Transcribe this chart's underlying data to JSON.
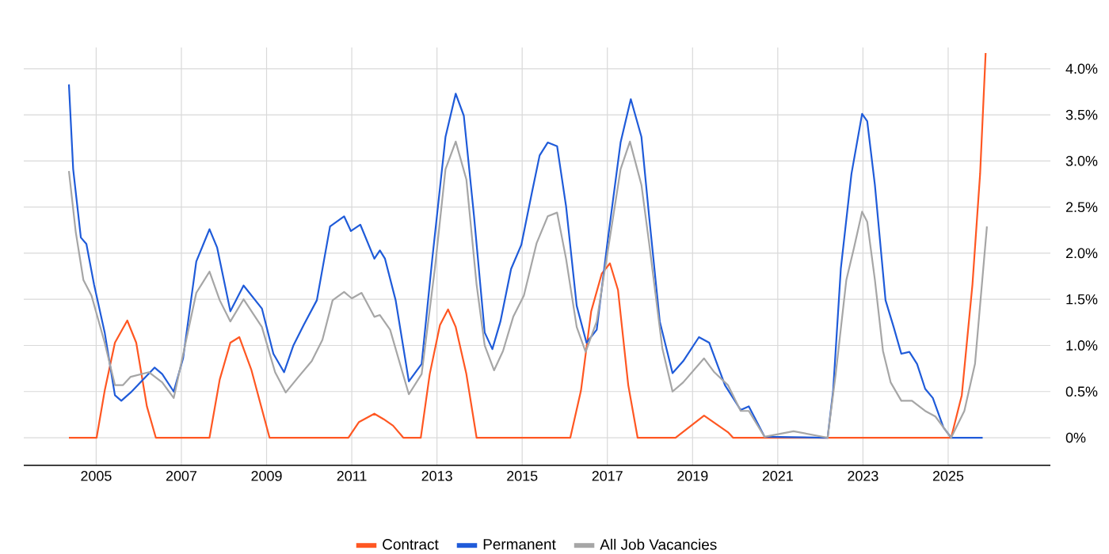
{
  "chart_data": {
    "type": "line",
    "xlim": [
      2003.3,
      2027.4
    ],
    "xticks": [
      2005,
      2007,
      2009,
      2011,
      2013,
      2015,
      2017,
      2019,
      2021,
      2023,
      2025
    ],
    "ylim": [
      -0.3,
      4.23
    ],
    "yticks": [
      {
        "value": 0,
        "label": "0%"
      },
      {
        "value": 0.5,
        "label": "0.5%"
      },
      {
        "value": 1,
        "label": "1.0%"
      },
      {
        "value": 1.5,
        "label": "1.5%"
      },
      {
        "value": 2,
        "label": "2.0%"
      },
      {
        "value": 2.5,
        "label": "2.5%"
      },
      {
        "value": 3,
        "label": "3.0%"
      },
      {
        "value": 3.5,
        "label": "3.5%"
      },
      {
        "value": 4,
        "label": "4.0%"
      }
    ],
    "grid": true,
    "legend": "bottom",
    "marker": "none",
    "line_style": "solid",
    "series": [
      {
        "name": "Contract",
        "color": "#ff5722",
        "x": [
          2004.36,
          2005.01,
          2005.2,
          2005.44,
          2005.73,
          2005.94,
          2006.19,
          2006.4,
          2007.66,
          2007.9,
          2008.15,
          2008.36,
          2008.64,
          2009.07,
          2010.92,
          2011.17,
          2011.53,
          2011.75,
          2011.97,
          2012.21,
          2012.62,
          2012.83,
          2013.07,
          2013.26,
          2013.44,
          2013.69,
          2013.93,
          2016.13,
          2016.38,
          2016.62,
          2016.87,
          2017.06,
          2017.25,
          2017.49,
          2017.71,
          2018.6,
          2019.27,
          2019.83,
          2019.95,
          2025.07,
          2025.32,
          2025.57,
          2025.75,
          2025.88
        ],
        "values": [
          0,
          0,
          0.51,
          1.03,
          1.27,
          1.03,
          0.34,
          0,
          0,
          0.63,
          1.03,
          1.09,
          0.74,
          0,
          0,
          0.17,
          0.26,
          0.2,
          0.13,
          0,
          0,
          0.69,
          1.22,
          1.39,
          1.2,
          0.69,
          0,
          0,
          0.51,
          1.37,
          1.78,
          1.89,
          1.6,
          0.57,
          0,
          0,
          0.24,
          0.06,
          0,
          0,
          0.46,
          1.66,
          2.86,
          4.17
        ]
      },
      {
        "name": "Permanent",
        "color": "#1f5bd9",
        "x": [
          2004.36,
          2004.46,
          2004.64,
          2004.77,
          2004.95,
          2005.2,
          2005.44,
          2005.59,
          2005.81,
          2006.37,
          2006.55,
          2006.82,
          2007.04,
          2007.35,
          2007.66,
          2007.84,
          2008.15,
          2008.46,
          2008.89,
          2009.16,
          2009.41,
          2009.63,
          2009.88,
          2010.18,
          2010.49,
          2010.82,
          2010.98,
          2011.2,
          2011.53,
          2011.66,
          2011.78,
          2012.03,
          2012.34,
          2012.64,
          2012.89,
          2013.2,
          2013.44,
          2013.63,
          2013.87,
          2014.12,
          2014.3,
          2014.49,
          2014.74,
          2014.98,
          2015.23,
          2015.41,
          2015.6,
          2015.82,
          2016.03,
          2016.28,
          2016.51,
          2016.75,
          2017.0,
          2017.31,
          2017.55,
          2017.8,
          2017.98,
          2018.23,
          2018.53,
          2018.78,
          2019.15,
          2019.39,
          2019.76,
          2020.13,
          2020.32,
          2020.69,
          2021.37,
          2022.17,
          2022.3,
          2022.48,
          2022.73,
          2022.98,
          2023.1,
          2023.28,
          2023.53,
          2023.72,
          2023.9,
          2024.09,
          2024.27,
          2024.46,
          2024.64,
          2024.89,
          2025.07,
          2025.81
        ],
        "values": [
          3.83,
          2.91,
          2.17,
          2.1,
          1.66,
          1.14,
          0.46,
          0.4,
          0.49,
          0.76,
          0.69,
          0.5,
          0.86,
          1.91,
          2.26,
          2.06,
          1.37,
          1.65,
          1.4,
          0.91,
          0.71,
          1.0,
          1.23,
          1.49,
          2.29,
          2.4,
          2.24,
          2.31,
          1.94,
          2.03,
          1.94,
          1.49,
          0.61,
          0.8,
          1.94,
          3.26,
          3.73,
          3.49,
          2.4,
          1.14,
          0.96,
          1.26,
          1.83,
          2.09,
          2.66,
          3.06,
          3.2,
          3.16,
          2.51,
          1.43,
          1.03,
          1.17,
          2.11,
          3.2,
          3.67,
          3.26,
          2.4,
          1.26,
          0.7,
          0.83,
          1.09,
          1.03,
          0.57,
          0.3,
          0.34,
          0.01,
          null,
          0,
          0.51,
          1.83,
          2.86,
          3.51,
          3.43,
          2.74,
          1.49,
          1.2,
          0.91,
          0.93,
          0.8,
          0.53,
          0.43,
          0.11,
          0,
          0
        ]
      },
      {
        "name": "All Job Vacancies",
        "color": "#a6a6a6",
        "x": [
          2004.36,
          2004.52,
          2004.7,
          2004.89,
          2005.2,
          2005.44,
          2005.63,
          2005.81,
          2006.24,
          2006.55,
          2006.82,
          2007.1,
          2007.35,
          2007.66,
          2007.9,
          2008.15,
          2008.46,
          2008.89,
          2009.2,
          2009.45,
          2009.75,
          2010.06,
          2010.31,
          2010.55,
          2010.82,
          2011.0,
          2011.23,
          2011.53,
          2011.66,
          2011.9,
          2012.34,
          2012.64,
          2012.95,
          2013.2,
          2013.44,
          2013.69,
          2013.93,
          2014.12,
          2014.34,
          2014.55,
          2014.79,
          2015.04,
          2015.34,
          2015.6,
          2015.82,
          2016.03,
          2016.28,
          2016.49,
          2016.75,
          2017.06,
          2017.31,
          2017.53,
          2017.8,
          2017.98,
          2018.29,
          2018.53,
          2018.78,
          2019.27,
          2019.51,
          2019.83,
          2020.13,
          2020.32,
          2020.69,
          2021.37,
          2022.17,
          2022.36,
          2022.61,
          2022.79,
          2022.98,
          2023.1,
          2023.28,
          2023.47,
          2023.65,
          2023.9,
          2024.15,
          2024.46,
          2024.7,
          2025.07,
          2025.38,
          2025.63,
          2025.91
        ],
        "values": [
          2.89,
          2.23,
          1.71,
          1.54,
          1.03,
          0.57,
          0.57,
          0.66,
          0.71,
          0.6,
          0.43,
          1.03,
          1.57,
          1.8,
          1.49,
          1.26,
          1.5,
          1.2,
          0.71,
          0.49,
          0.66,
          0.83,
          1.06,
          1.49,
          1.58,
          1.51,
          1.57,
          1.31,
          1.33,
          1.17,
          0.47,
          0.69,
          1.83,
          2.91,
          3.21,
          2.8,
          1.66,
          1.0,
          0.73,
          0.94,
          1.31,
          1.54,
          2.11,
          2.4,
          2.44,
          1.94,
          1.2,
          0.93,
          1.26,
          2.17,
          2.91,
          3.21,
          2.74,
          2.11,
          0.97,
          0.5,
          0.6,
          0.86,
          0.71,
          0.57,
          0.29,
          0.29,
          0.01,
          0.07,
          0,
          0.69,
          1.71,
          2.06,
          2.45,
          2.34,
          1.71,
          0.94,
          0.6,
          0.4,
          0.4,
          0.29,
          0.23,
          0,
          0.29,
          0.8,
          2.29
        ]
      }
    ]
  }
}
